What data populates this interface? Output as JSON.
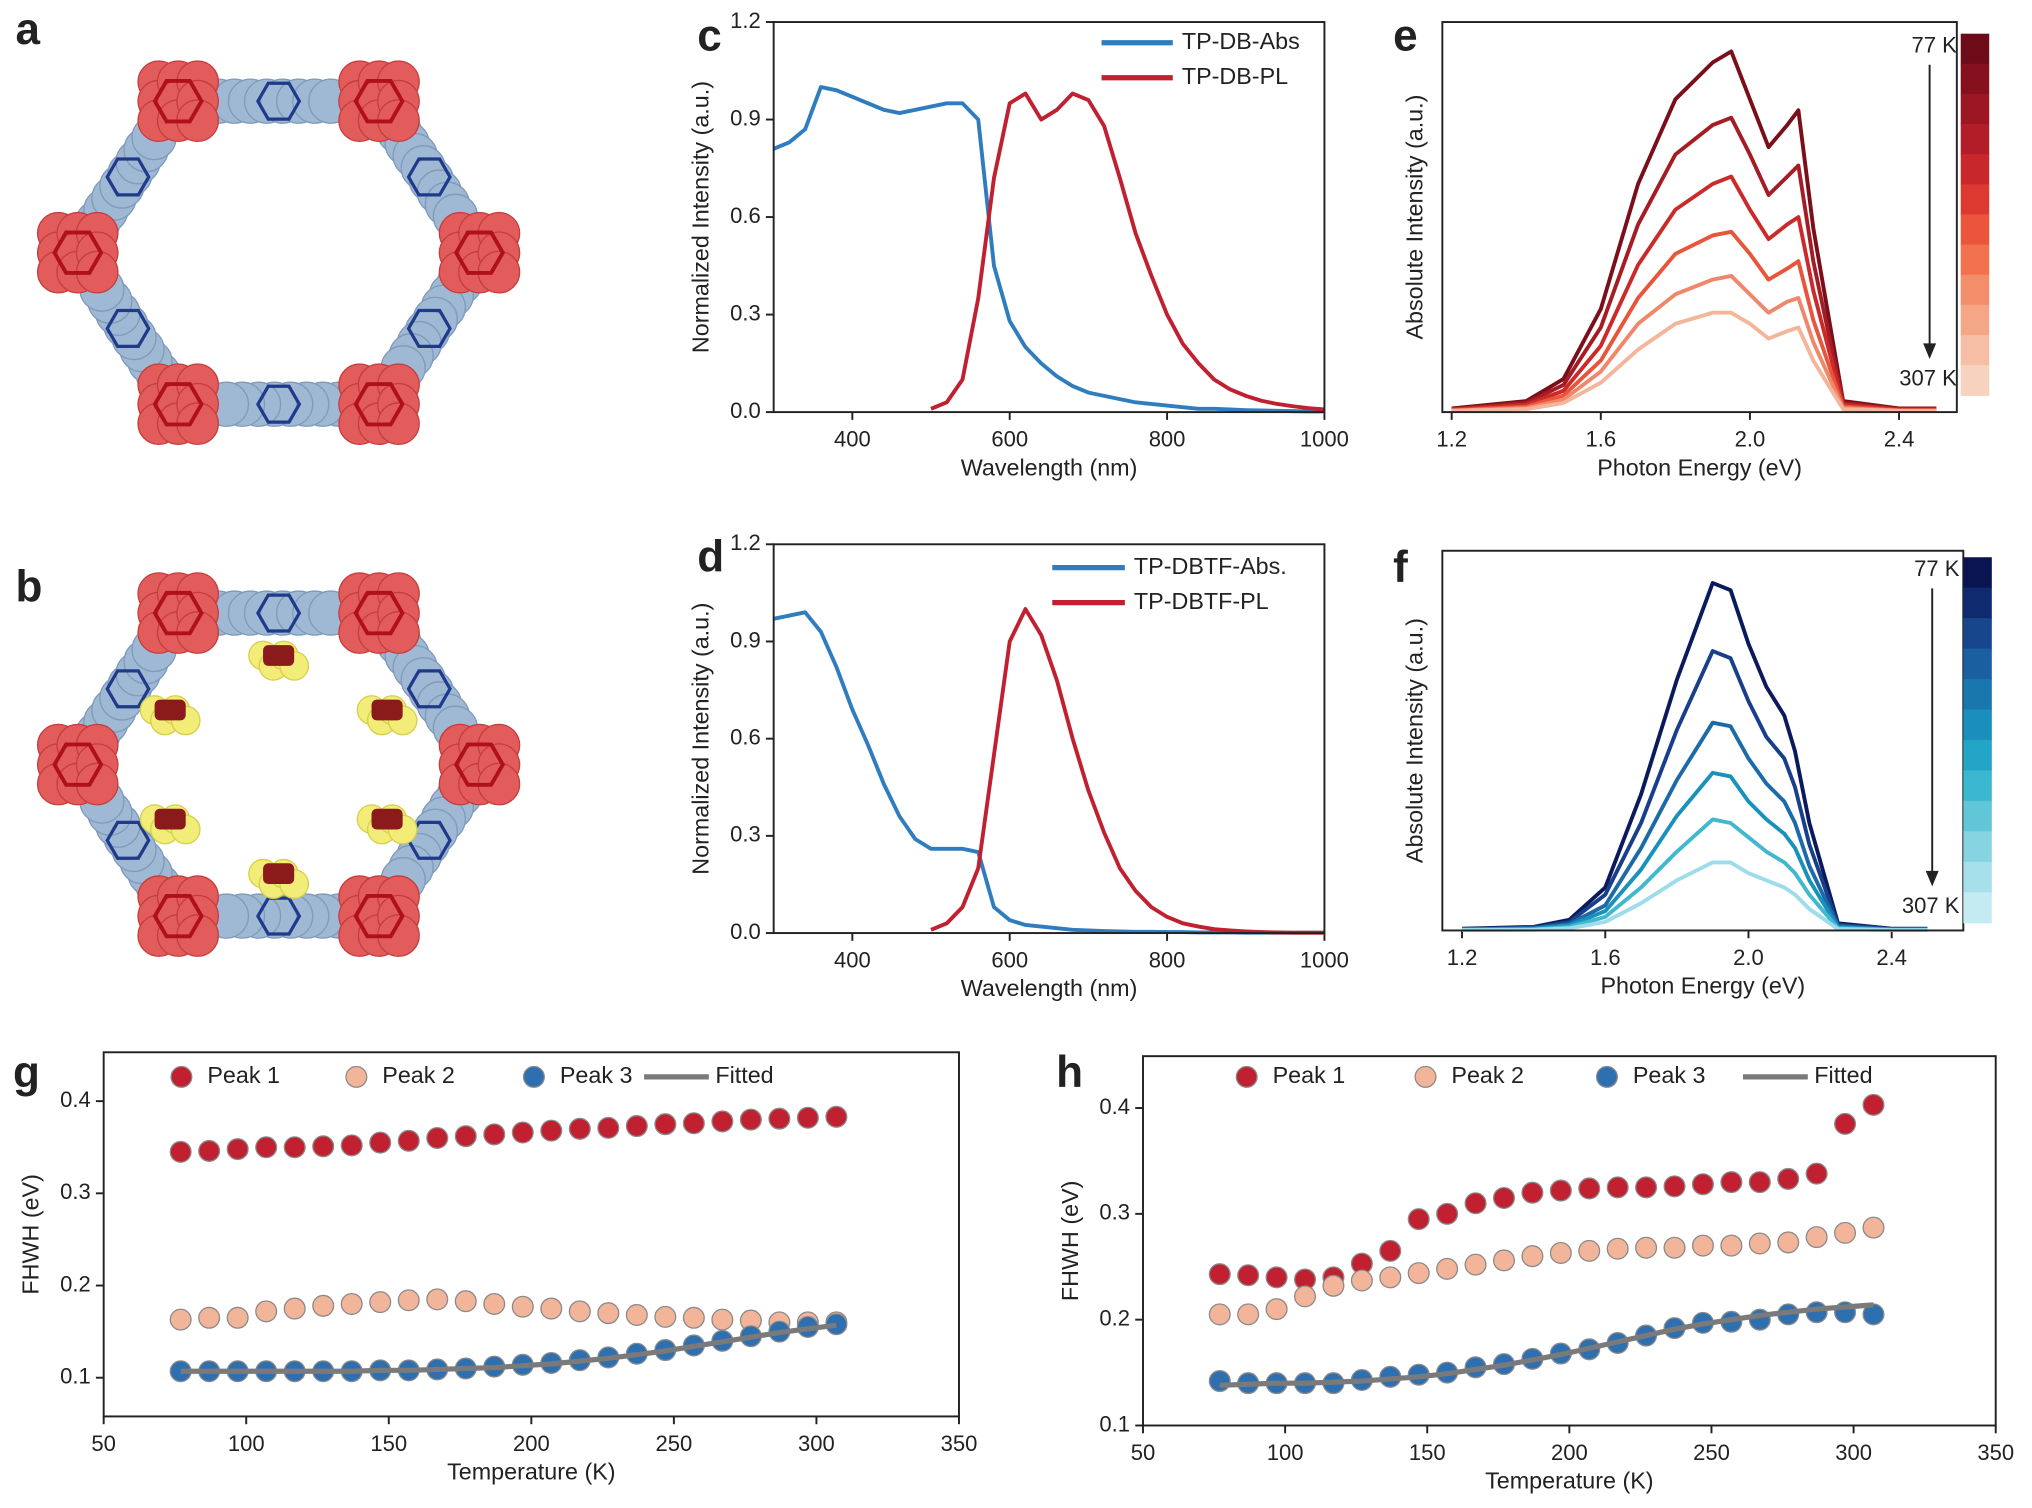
{
  "structure_panels": [
    "a",
    "b"
  ],
  "chart_data": [
    {
      "type": "line",
      "panel_label": "c",
      "xlabel": "Wavelength (nm)",
      "ylabel": "Normalized Intensity (a.u.)",
      "xlim": [
        300,
        1000
      ],
      "xticks": [
        400,
        600,
        800,
        1000
      ],
      "ylim": [
        0,
        1.2
      ],
      "yticks": [
        {
          "value": 0,
          "label": "0.0"
        },
        0.3,
        0.6,
        0.9,
        1.2
      ],
      "x": [
        300,
        320,
        340,
        360,
        380,
        400,
        420,
        440,
        460,
        480,
        500,
        520,
        540,
        560,
        580,
        600,
        620,
        640,
        660,
        680,
        700,
        720,
        740,
        760,
        780,
        800,
        820,
        840,
        860,
        880,
        900,
        920,
        940,
        960,
        980,
        1000
      ],
      "series": [
        {
          "name": "TP-DB-Abs",
          "color": "#2f7dbf",
          "values": [
            0.81,
            0.83,
            0.87,
            1.0,
            0.99,
            0.97,
            0.95,
            0.93,
            0.92,
            0.93,
            0.94,
            0.95,
            0.95,
            0.9,
            0.45,
            0.28,
            0.2,
            0.15,
            0.11,
            0.08,
            0.06,
            0.05,
            0.04,
            0.03,
            0.025,
            0.02,
            0.015,
            0.01,
            0.01,
            0.008,
            0.006,
            0.005,
            0.004,
            0.003,
            0.002,
            0.002
          ]
        },
        {
          "name": "TP-DB-PL",
          "color": "#c0202f",
          "values": [
            null,
            null,
            null,
            null,
            null,
            null,
            null,
            null,
            null,
            null,
            0.01,
            0.03,
            0.1,
            0.35,
            0.72,
            0.95,
            0.98,
            0.9,
            0.93,
            0.98,
            0.96,
            0.88,
            0.72,
            0.55,
            0.42,
            0.3,
            0.21,
            0.15,
            0.1,
            0.07,
            0.05,
            0.035,
            0.025,
            0.018,
            0.012,
            0.008
          ]
        }
      ]
    },
    {
      "type": "line",
      "panel_label": "d",
      "xlabel": "Wavelength (nm)",
      "ylabel": "Normalized Intensity (a.u.)",
      "xlim": [
        300,
        1000
      ],
      "xticks": [
        400,
        600,
        800,
        1000
      ],
      "ylim": [
        0,
        1.2
      ],
      "yticks": [
        {
          "value": 0,
          "label": "0.0"
        },
        0.3,
        0.6,
        0.9,
        1.2
      ],
      "x": [
        300,
        320,
        340,
        360,
        380,
        400,
        420,
        440,
        460,
        480,
        500,
        520,
        540,
        560,
        580,
        600,
        620,
        640,
        660,
        680,
        700,
        720,
        740,
        760,
        780,
        800,
        820,
        840,
        860,
        880,
        900,
        920,
        940,
        960,
        980,
        1000
      ],
      "series": [
        {
          "name": "TP-DBTF-Abs.",
          "color": "#2f7dbf",
          "values": [
            0.97,
            0.98,
            0.99,
            0.93,
            0.82,
            0.69,
            0.58,
            0.46,
            0.36,
            0.29,
            0.26,
            0.26,
            0.26,
            0.25,
            0.08,
            0.04,
            0.025,
            0.02,
            0.015,
            0.01,
            0.008,
            0.006,
            0.005,
            0.004,
            0.004,
            0.003,
            0.003,
            0.002,
            0.002,
            0.002,
            0.001,
            0.001,
            0.001,
            0.001,
            0.001,
            0.001
          ]
        },
        {
          "name": "TP-DBTF-PL",
          "color": "#c0202f",
          "values": [
            null,
            null,
            null,
            null,
            null,
            null,
            null,
            null,
            null,
            null,
            0.01,
            0.03,
            0.08,
            0.2,
            0.55,
            0.9,
            1.0,
            0.92,
            0.78,
            0.6,
            0.44,
            0.31,
            0.2,
            0.13,
            0.08,
            0.05,
            0.03,
            0.02,
            0.012,
            0.008,
            0.005,
            0.003,
            0.002,
            0.001,
            0.001,
            0.001
          ]
        }
      ]
    },
    {
      "type": "line",
      "panel_label": "e",
      "xlabel": "Photon Energy (eV)",
      "ylabel": "Absolute Intensity (a.u.)",
      "xlim": [
        1.175,
        2.555
      ],
      "xticks": [
        1.2,
        1.6,
        {
          "value": 2,
          "label": "2.0"
        },
        2.4
      ],
      "ylim": [
        0,
        1.06
      ],
      "colorbar": {
        "colors": [
          "#6d0b18",
          "#86101e",
          "#9c1723",
          "#b31d27",
          "#c8272b",
          "#dc3a31",
          "#ea553c",
          "#f2714f",
          "#f48d6a",
          "#f5a686",
          "#f6bea4",
          "#f7d2bf"
        ],
        "labels": [
          "77 K",
          "307 K"
        ]
      },
      "x": [
        1.2,
        1.4,
        1.5,
        1.6,
        1.7,
        1.8,
        1.9,
        1.95,
        2.0,
        2.05,
        2.1,
        2.13,
        2.17,
        2.25,
        2.4,
        2.5
      ],
      "series": [
        {
          "color": "#7a0f1a",
          "values": [
            0.01,
            0.03,
            0.09,
            0.28,
            0.62,
            0.85,
            0.95,
            0.98,
            0.85,
            0.72,
            0.78,
            0.82,
            0.5,
            0.03,
            0.01,
            0.01
          ]
        },
        {
          "color": "#a51c24",
          "values": [
            0.008,
            0.025,
            0.074,
            0.23,
            0.51,
            0.7,
            0.78,
            0.8,
            0.7,
            0.59,
            0.64,
            0.67,
            0.41,
            0.025,
            0.008,
            0.008
          ]
        },
        {
          "color": "#cc2a2a",
          "values": [
            0.007,
            0.02,
            0.058,
            0.18,
            0.4,
            0.55,
            0.62,
            0.64,
            0.55,
            0.47,
            0.51,
            0.53,
            0.33,
            0.02,
            0.007,
            0.007
          ]
        },
        {
          "color": "#e8553a",
          "values": [
            0.005,
            0.015,
            0.045,
            0.14,
            0.31,
            0.43,
            0.48,
            0.49,
            0.43,
            0.36,
            0.39,
            0.41,
            0.25,
            0.015,
            0.005,
            0.005
          ]
        },
        {
          "color": "#f0876a",
          "values": [
            0.004,
            0.011,
            0.034,
            0.11,
            0.24,
            0.32,
            0.36,
            0.37,
            0.32,
            0.27,
            0.3,
            0.31,
            0.19,
            0.011,
            0.004,
            0.004
          ]
        },
        {
          "color": "#f4b59a",
          "values": [
            0.003,
            0.008,
            0.025,
            0.08,
            0.17,
            0.24,
            0.27,
            0.27,
            0.24,
            0.2,
            0.22,
            0.23,
            0.14,
            0.008,
            0.003,
            0.003
          ]
        }
      ]
    },
    {
      "type": "line",
      "panel_label": "f",
      "xlabel": "Photon Energy (eV)",
      "ylabel": "Absolute Intensity (a.u.)",
      "xlim": [
        1.145,
        2.6
      ],
      "xticks": [
        1.2,
        1.6,
        {
          "value": 2,
          "label": "2.0"
        },
        2.4
      ],
      "ylim": [
        0,
        1.06
      ],
      "colorbar": {
        "colors": [
          "#0a1450",
          "#0f2a6e",
          "#17468c",
          "#1a5f9f",
          "#1a77ae",
          "#1a8fbb",
          "#22a5c6",
          "#3bb7d0",
          "#62c6d9",
          "#86d4e2",
          "#a6e0ea",
          "#c4ebf2"
        ],
        "labels": [
          "77 K",
          "307 K"
        ]
      },
      "x": [
        1.2,
        1.4,
        1.5,
        1.6,
        1.7,
        1.8,
        1.9,
        1.95,
        2.0,
        2.05,
        2.1,
        2.13,
        2.17,
        2.25,
        2.4,
        2.5
      ],
      "series": [
        {
          "color": "#0b1a5c",
          "values": [
            0.005,
            0.01,
            0.03,
            0.12,
            0.38,
            0.7,
            0.97,
            0.95,
            0.8,
            0.68,
            0.6,
            0.5,
            0.3,
            0.02,
            0.005,
            0.005
          ]
        },
        {
          "color": "#1a3f8a",
          "values": [
            0.004,
            0.008,
            0.024,
            0.1,
            0.3,
            0.56,
            0.78,
            0.76,
            0.64,
            0.54,
            0.48,
            0.4,
            0.24,
            0.016,
            0.004,
            0.004
          ]
        },
        {
          "color": "#1c6aa8",
          "values": [
            0.003,
            0.006,
            0.018,
            0.07,
            0.23,
            0.42,
            0.58,
            0.57,
            0.48,
            0.41,
            0.36,
            0.3,
            0.18,
            0.012,
            0.003,
            0.003
          ]
        },
        {
          "color": "#1892bb",
          "values": [
            0.002,
            0.005,
            0.014,
            0.054,
            0.17,
            0.32,
            0.44,
            0.43,
            0.36,
            0.31,
            0.27,
            0.23,
            0.14,
            0.009,
            0.002,
            0.002
          ]
        },
        {
          "color": "#3fb8d0",
          "values": [
            0.002,
            0.003,
            0.01,
            0.038,
            0.12,
            0.22,
            0.31,
            0.3,
            0.26,
            0.22,
            0.19,
            0.16,
            0.1,
            0.006,
            0.002,
            0.002
          ]
        },
        {
          "color": "#9ddcea",
          "values": [
            0.001,
            0.002,
            0.006,
            0.024,
            0.076,
            0.14,
            0.19,
            0.19,
            0.16,
            0.14,
            0.12,
            0.1,
            0.06,
            0.004,
            0.001,
            0.001
          ]
        }
      ]
    },
    {
      "type": "scatter",
      "panel_label": "g",
      "xlabel": "Temperature (K)",
      "ylabel": "FHWH (eV)",
      "xlim": [
        50,
        350
      ],
      "xticks": [
        50,
        100,
        150,
        200,
        250,
        300,
        350
      ],
      "ylim": [
        0.058,
        0.453
      ],
      "yticks": [
        0.1,
        0.2,
        0.3,
        0.4
      ],
      "x": [
        77,
        87,
        97,
        107,
        117,
        127,
        137,
        147,
        157,
        167,
        177,
        187,
        197,
        207,
        217,
        227,
        237,
        247,
        257,
        267,
        277,
        287,
        297,
        307
      ],
      "series": [
        {
          "name": "Peak 1",
          "color": "#c0202f",
          "values": [
            0.345,
            0.346,
            0.348,
            0.35,
            0.35,
            0.351,
            0.352,
            0.355,
            0.357,
            0.36,
            0.362,
            0.364,
            0.366,
            0.368,
            0.37,
            0.371,
            0.373,
            0.375,
            0.376,
            0.378,
            0.38,
            0.381,
            0.382,
            0.383
          ]
        },
        {
          "name": "Peak 2",
          "color": "#f3b59a",
          "values": [
            0.163,
            0.165,
            0.165,
            0.172,
            0.175,
            0.178,
            0.18,
            0.182,
            0.184,
            0.185,
            0.183,
            0.18,
            0.177,
            0.175,
            0.172,
            0.17,
            0.168,
            0.166,
            0.165,
            0.163,
            0.162,
            0.16,
            0.16,
            0.16
          ]
        },
        {
          "name": "Peak 3",
          "color": "#2e6fb0",
          "values": [
            0.107,
            0.107,
            0.107,
            0.107,
            0.107,
            0.107,
            0.107,
            0.108,
            0.108,
            0.109,
            0.11,
            0.112,
            0.114,
            0.116,
            0.119,
            0.122,
            0.126,
            0.13,
            0.135,
            0.14,
            0.145,
            0.15,
            0.155,
            0.158
          ]
        },
        {
          "name": "Fitted",
          "color": "#7a7a7a",
          "mode": "line",
          "values": [
            0.107,
            0.107,
            0.107,
            0.107,
            0.107,
            0.107,
            0.107,
            0.108,
            0.108,
            0.109,
            0.11,
            0.111,
            0.113,
            0.115,
            0.118,
            0.121,
            0.125,
            0.129,
            0.134,
            0.139,
            0.144,
            0.149,
            0.153,
            0.157
          ]
        }
      ]
    },
    {
      "type": "scatter",
      "panel_label": "h",
      "xlabel": "Temperature (K)",
      "ylabel": "FHWH (eV)",
      "xlim": [
        50,
        350
      ],
      "xticks": [
        50,
        100,
        150,
        200,
        250,
        300,
        350
      ],
      "ylim": [
        0.1,
        0.449
      ],
      "yticks": [
        0.1,
        0.2,
        0.3,
        0.4
      ],
      "x": [
        77,
        87,
        97,
        107,
        117,
        127,
        137,
        147,
        157,
        167,
        177,
        187,
        197,
        207,
        217,
        227,
        237,
        247,
        257,
        267,
        277,
        287,
        297,
        307
      ],
      "series": [
        {
          "name": "Peak 1",
          "color": "#c0202f",
          "values": [
            0.243,
            0.242,
            0.24,
            0.238,
            0.24,
            0.253,
            0.265,
            0.295,
            0.3,
            0.31,
            0.315,
            0.32,
            0.322,
            0.324,
            0.325,
            0.325,
            0.326,
            0.328,
            0.33,
            0.33,
            0.333,
            0.338,
            0.385,
            0.403
          ]
        },
        {
          "name": "Peak 2",
          "color": "#f3b59a",
          "values": [
            0.205,
            0.205,
            0.21,
            0.222,
            0.232,
            0.237,
            0.24,
            0.244,
            0.248,
            0.252,
            0.256,
            0.26,
            0.263,
            0.265,
            0.267,
            0.268,
            0.268,
            0.27,
            0.27,
            0.272,
            0.273,
            0.278,
            0.282,
            0.287
          ]
        },
        {
          "name": "Peak 3",
          "color": "#2e6fb0",
          "values": [
            0.142,
            0.14,
            0.14,
            0.14,
            0.14,
            0.143,
            0.146,
            0.148,
            0.15,
            0.155,
            0.158,
            0.163,
            0.168,
            0.172,
            0.178,
            0.185,
            0.192,
            0.197,
            0.198,
            0.2,
            0.205,
            0.207,
            0.207,
            0.205
          ]
        },
        {
          "name": "Fitted",
          "color": "#7a7a7a",
          "mode": "line",
          "values": [
            0.138,
            0.139,
            0.14,
            0.14,
            0.141,
            0.142,
            0.144,
            0.146,
            0.149,
            0.153,
            0.157,
            0.162,
            0.167,
            0.173,
            0.179,
            0.185,
            0.191,
            0.196,
            0.2,
            0.204,
            0.207,
            0.21,
            0.212,
            0.214
          ]
        }
      ]
    }
  ]
}
